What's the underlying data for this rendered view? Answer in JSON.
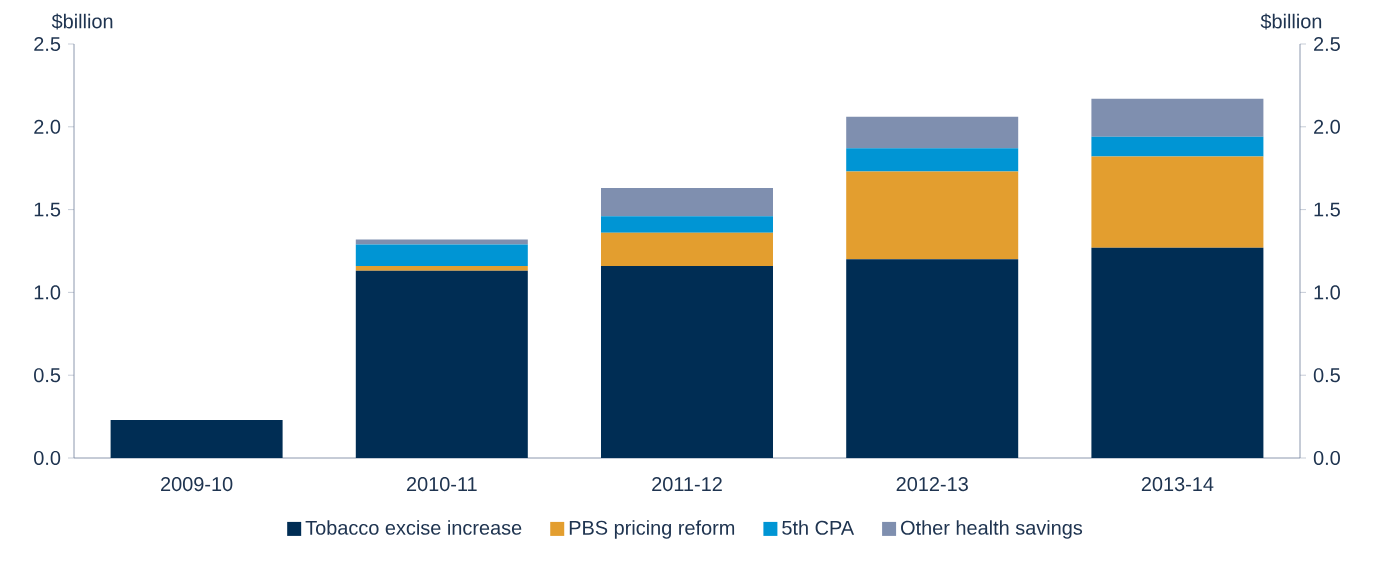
{
  "chart_data": {
    "type": "bar",
    "stacked": true,
    "ylabel": "$billion",
    "y2label": "$billion",
    "categories": [
      "2009-10",
      "2010-11",
      "2011-12",
      "2012-13",
      "2013-14"
    ],
    "series": [
      {
        "name": "Tobacco excise increase",
        "color": "#002d54",
        "values": [
          0.23,
          1.13,
          1.16,
          1.2,
          1.27
        ]
      },
      {
        "name": "PBS pricing reform",
        "color": "#e39e2f",
        "values": [
          null,
          0.03,
          0.2,
          0.53,
          0.55
        ]
      },
      {
        "name": "5th CPA",
        "color": "#0095d4",
        "values": [
          null,
          0.13,
          0.1,
          0.14,
          0.12
        ]
      },
      {
        "name": "Other health savings",
        "color": "#7f8faf",
        "values": [
          null,
          0.03,
          0.17,
          0.19,
          0.23
        ]
      }
    ],
    "ylim": [
      0,
      2.5
    ],
    "yticks": [
      {
        "value": 0,
        "label": "0.0"
      },
      0.5,
      {
        "value": 1,
        "label": "1.0"
      },
      1.5,
      {
        "value": 2,
        "label": "2.0"
      },
      2.5
    ],
    "y2lim": [
      0,
      2.5
    ],
    "y2ticks": [
      {
        "value": 0,
        "label": "0.0"
      },
      0.5,
      {
        "value": 1,
        "label": "1.0"
      },
      1.5,
      {
        "value": 2,
        "label": "2.0"
      },
      2.5
    ],
    "legend": "bottom",
    "grid": false
  }
}
